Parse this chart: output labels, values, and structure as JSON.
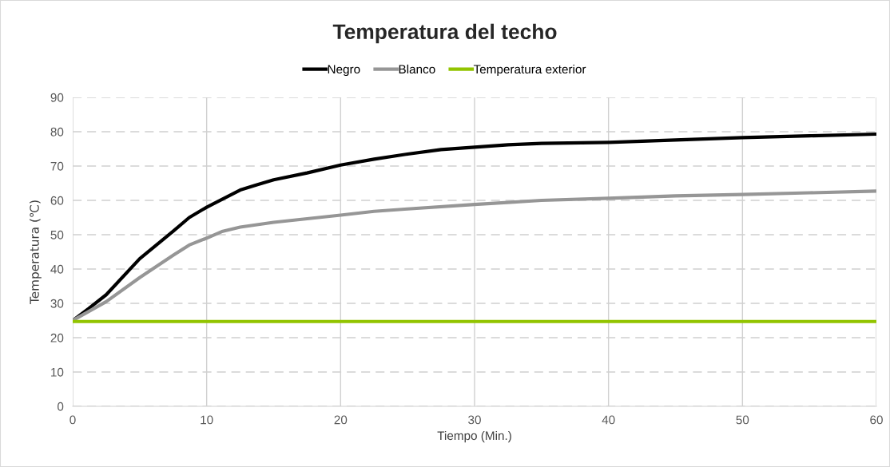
{
  "chart_data": {
    "type": "line",
    "title": "Temperatura del techo",
    "xlabel": "Tiempo (Min.)",
    "ylabel": "Temperatura (℃)",
    "xlim": [
      0,
      60
    ],
    "xticks": [
      0,
      10,
      20,
      30,
      40,
      50,
      60
    ],
    "ylim": [
      0,
      90
    ],
    "yticks": [
      0,
      10,
      20,
      30,
      40,
      50,
      60,
      70,
      80,
      90
    ],
    "grid": true,
    "legend": "top",
    "marker": "none",
    "line_style": "solid",
    "series": [
      {
        "name": "Negro",
        "color": "#000000",
        "x": [
          0,
          1.2,
          2.5,
          5,
          7.5,
          8.7,
          10,
          12.5,
          13.7,
          15,
          17.5,
          20,
          22.5,
          25,
          27.5,
          30,
          32.5,
          35,
          40,
          45,
          50,
          55,
          60
        ],
        "values": [
          25,
          28.5,
          32.5,
          43,
          51,
          55,
          58,
          63,
          64.5,
          66,
          68,
          70.3,
          72,
          73.5,
          74.8,
          75.5,
          76.2,
          76.6,
          76.9,
          77.6,
          78.3,
          78.8,
          79.3
        ]
      },
      {
        "name": "Blanco",
        "color": "#969696",
        "x": [
          0,
          2.5,
          5,
          7.5,
          8.7,
          10,
          11.2,
          12.5,
          15,
          20,
          22.5,
          25,
          30,
          35,
          40,
          45,
          50,
          55,
          60
        ],
        "values": [
          25,
          30.5,
          37.5,
          44,
          47,
          49,
          51,
          52.2,
          53.6,
          55.7,
          56.8,
          57.5,
          58.8,
          60,
          60.6,
          61.3,
          61.7,
          62.2,
          62.7
        ]
      },
      {
        "name": "Temperatura exterior",
        "color": "#92c400",
        "x": [
          0,
          60
        ],
        "values": [
          24.7,
          24.7
        ]
      }
    ]
  }
}
